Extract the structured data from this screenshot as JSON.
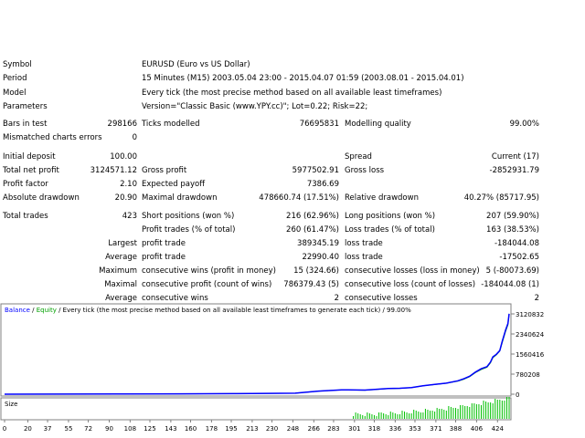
{
  "info": {
    "symbol_label": "Symbol",
    "symbol_value": "EURUSD (Euro vs US Dollar)",
    "period_label": "Period",
    "period_value": "15 Minutes (M15) 2003.05.04 23:00 - 2015.04.07 01:59 (2003.08.01 - 2015.04.01)",
    "model_label": "Model",
    "model_value": "Every tick (the most precise method based on all available least timeframes)",
    "params_label": "Parameters",
    "params_value": "Version=\"Classic Basic (www.YPY.cc)\"; Lot=0.22; Risk=22;"
  },
  "stats": {
    "bars_label": "Bars in test",
    "bars_value": "298166",
    "ticks_label": "Ticks modelled",
    "ticks_value": "76695831",
    "quality_label": "Modelling quality",
    "quality_value": "99.00%",
    "mismatch_label": "Mismatched charts errors",
    "mismatch_value": "0",
    "deposit_label": "Initial deposit",
    "deposit_value": "100.00",
    "spread_label": "Spread",
    "spread_value": "Current (17)",
    "netprofit_label": "Total net profit",
    "netprofit_value": "3124571.12",
    "grossprofit_label": "Gross profit",
    "grossprofit_value": "5977502.91",
    "grossloss_label": "Gross loss",
    "grossloss_value": "-2852931.79",
    "pf_label": "Profit factor",
    "pf_value": "2.10",
    "payoff_label": "Expected payoff",
    "payoff_value": "7386.69",
    "absdd_label": "Absolute drawdown",
    "absdd_value": "20.90",
    "maxdd_label": "Maximal drawdown",
    "maxdd_value": "478660.74 (17.51%)",
    "reldd_label": "Relative drawdown",
    "reldd_value": "40.27% (85717.95)",
    "trades_label": "Total trades",
    "trades_value": "423",
    "short_label": "Short positions (won %)",
    "short_value": "216 (62.96%)",
    "long_label": "Long positions (won %)",
    "long_value": "207 (59.90%)",
    "profit_trades_label": "Profit trades (% of total)",
    "profit_trades_value": "260 (61.47%)",
    "loss_trades_label": "Loss trades (% of total)",
    "loss_trades_value": "163 (38.53%)",
    "largest_label": "Largest",
    "largest_profit_label": "profit trade",
    "largest_profit_value": "389345.19",
    "largest_loss_label": "loss trade",
    "largest_loss_value": "-184044.08",
    "average_label": "Average",
    "average_profit_label": "profit trade",
    "average_profit_value": "22990.40",
    "average_loss_label": "loss trade",
    "average_loss_value": "-17502.65",
    "maximum_label": "Maximum",
    "max_cons_wins_label": "consecutive wins (profit in money)",
    "max_cons_wins_value": "15 (324.66)",
    "max_cons_losses_label": "consecutive losses (loss in money)",
    "max_cons_losses_value": "5 (-80073.69)",
    "maximal_label": "Maximal",
    "maximal_profit_label": "consecutive profit (count of wins)",
    "maximal_profit_value": "786379.43 (5)",
    "maximal_loss_label": "consecutive loss (count of losses)",
    "maximal_loss_value": "-184044.08 (1)",
    "average2_label": "Average",
    "avg_cons_wins_label": "consecutive wins",
    "avg_cons_wins_value": "2",
    "avg_cons_losses_label": "consecutive losses",
    "avg_cons_losses_value": "2"
  },
  "chart_data": {
    "type": "line",
    "caption": {
      "balance": "Balance",
      "sep1": " / ",
      "equity": "Equity",
      "rest": " / Every tick (the most precise method based on all available least timeframes to generate each tick) / 99.00%"
    },
    "colors": {
      "balance": "#0000ff",
      "equity": "#00a000",
      "size": "#00c000"
    },
    "ylim": [
      0,
      3120832
    ],
    "yticks": [
      "3120832",
      "2340624",
      "1560416",
      "780208",
      "0"
    ],
    "xlim": [
      0,
      434
    ],
    "xticks": [
      "0",
      "20",
      "37",
      "55",
      "72",
      "90",
      "108",
      "125",
      "143",
      "160",
      "178",
      "195",
      "213",
      "230",
      "248",
      "266",
      "283",
      "301",
      "318",
      "336",
      "353",
      "371",
      "388",
      "406",
      "424"
    ],
    "size_label": "Size",
    "series": [
      {
        "name": "Balance",
        "x": [
          0,
          50,
          100,
          150,
          200,
          250,
          270,
          290,
          310,
          330,
          340,
          350,
          360,
          370,
          380,
          390,
          395,
          400,
          405,
          410,
          415,
          418,
          420,
          423,
          426,
          428,
          431,
          433,
          434
        ],
        "y": [
          100,
          3000,
          8000,
          15000,
          22000,
          40000,
          120000,
          170000,
          160000,
          220000,
          230000,
          260000,
          330000,
          380000,
          430000,
          520000,
          600000,
          700000,
          860000,
          990000,
          1070000,
          1250000,
          1450000,
          1550000,
          1700000,
          2050000,
          2500000,
          2750000,
          3124671
        ]
      },
      {
        "name": "Equity",
        "x": [
          0,
          50,
          100,
          150,
          200,
          250,
          270,
          290,
          310,
          330,
          340,
          350,
          360,
          370,
          380,
          390,
          395,
          400,
          405,
          410,
          415,
          418,
          420,
          423,
          426,
          428,
          431,
          433,
          434
        ],
        "y": [
          100,
          3000,
          8000,
          15000,
          22000,
          40000,
          120000,
          165000,
          155000,
          215000,
          228000,
          255000,
          325000,
          375000,
          425000,
          510000,
          580000,
          680000,
          840000,
          960000,
          1050000,
          1220000,
          1420000,
          1530000,
          1680000,
          2000000,
          2450000,
          2700000,
          3124671
        ]
      }
    ]
  }
}
